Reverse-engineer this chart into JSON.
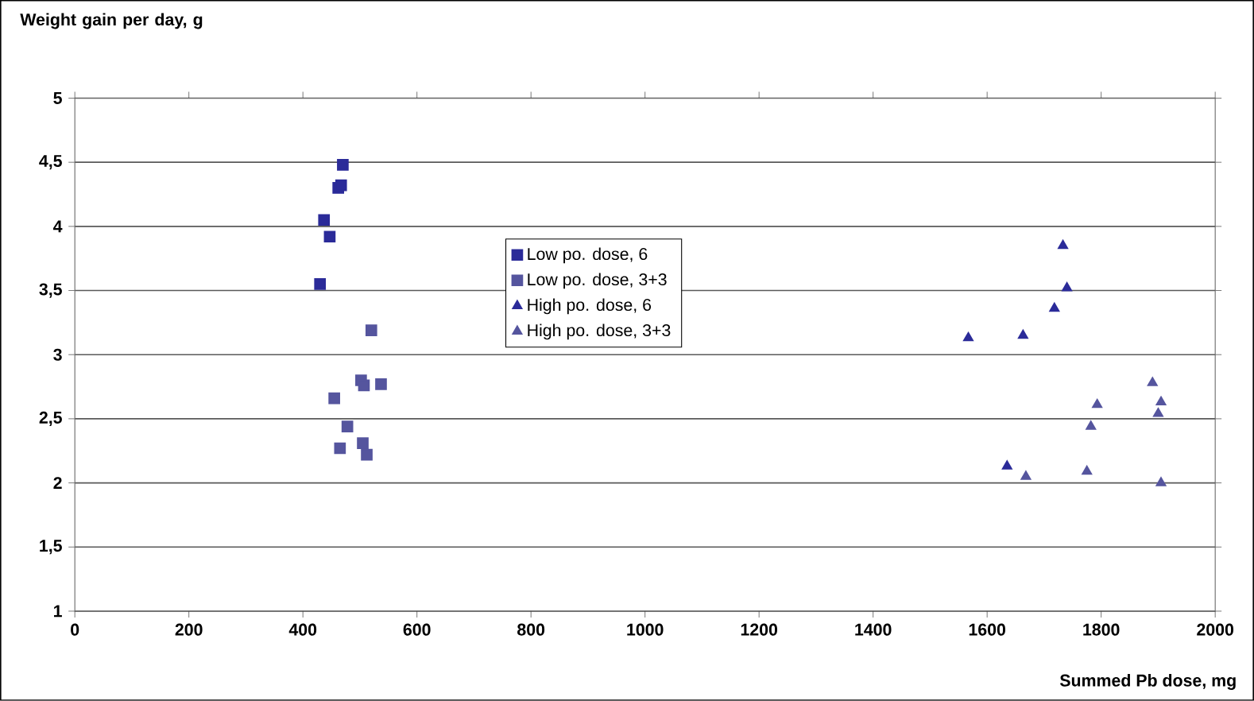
{
  "chart_data": {
    "type": "scatter",
    "ylabel": "Weight gain per day, g",
    "xlabel": "Summed Pb dose, mg",
    "xlim": [
      0,
      2000
    ],
    "xticks": [
      0,
      200,
      400,
      600,
      800,
      1000,
      1200,
      1400,
      1600,
      1800,
      2000
    ],
    "ylim": [
      1,
      5
    ],
    "yticks": [
      1,
      {
        "value": 1.5,
        "label": "1,5"
      },
      2,
      {
        "value": 2.5,
        "label": "2,5"
      },
      3,
      {
        "value": 3.5,
        "label": "3,5"
      },
      4,
      {
        "value": 4.5,
        "label": "4,5"
      },
      5
    ],
    "grid": "y",
    "legend": "center",
    "series": [
      {
        "name": "Low po. dose, 6",
        "marker": "square",
        "color": "#2b2b99",
        "x": [
          430,
          437,
          447,
          462,
          467,
          470
        ],
        "values": [
          3.55,
          4.05,
          3.92,
          4.3,
          4.32,
          4.48
        ]
      },
      {
        "name": "Low po. dose, 3+3",
        "marker": "square",
        "color": "#55559e",
        "x": [
          455,
          465,
          478,
          502,
          505,
          507,
          512,
          520,
          537
        ],
        "values": [
          2.66,
          2.27,
          2.44,
          2.8,
          2.31,
          2.76,
          2.22,
          3.19,
          2.77
        ]
      },
      {
        "name": "High po. dose, 6",
        "marker": "triangle",
        "color": "#2b2b99",
        "x": [
          1567,
          1635,
          1663,
          1718,
          1733,
          1740
        ],
        "values": [
          3.13,
          2.13,
          3.15,
          3.36,
          3.85,
          3.52
        ]
      },
      {
        "name": "High po. dose, 3+3",
        "marker": "triangle",
        "color": "#55559e",
        "x": [
          1668,
          1775,
          1782,
          1793,
          1890,
          1900,
          1905,
          1905
        ],
        "values": [
          2.05,
          2.09,
          2.44,
          2.61,
          2.78,
          2.54,
          2.63,
          2.0
        ]
      }
    ]
  }
}
